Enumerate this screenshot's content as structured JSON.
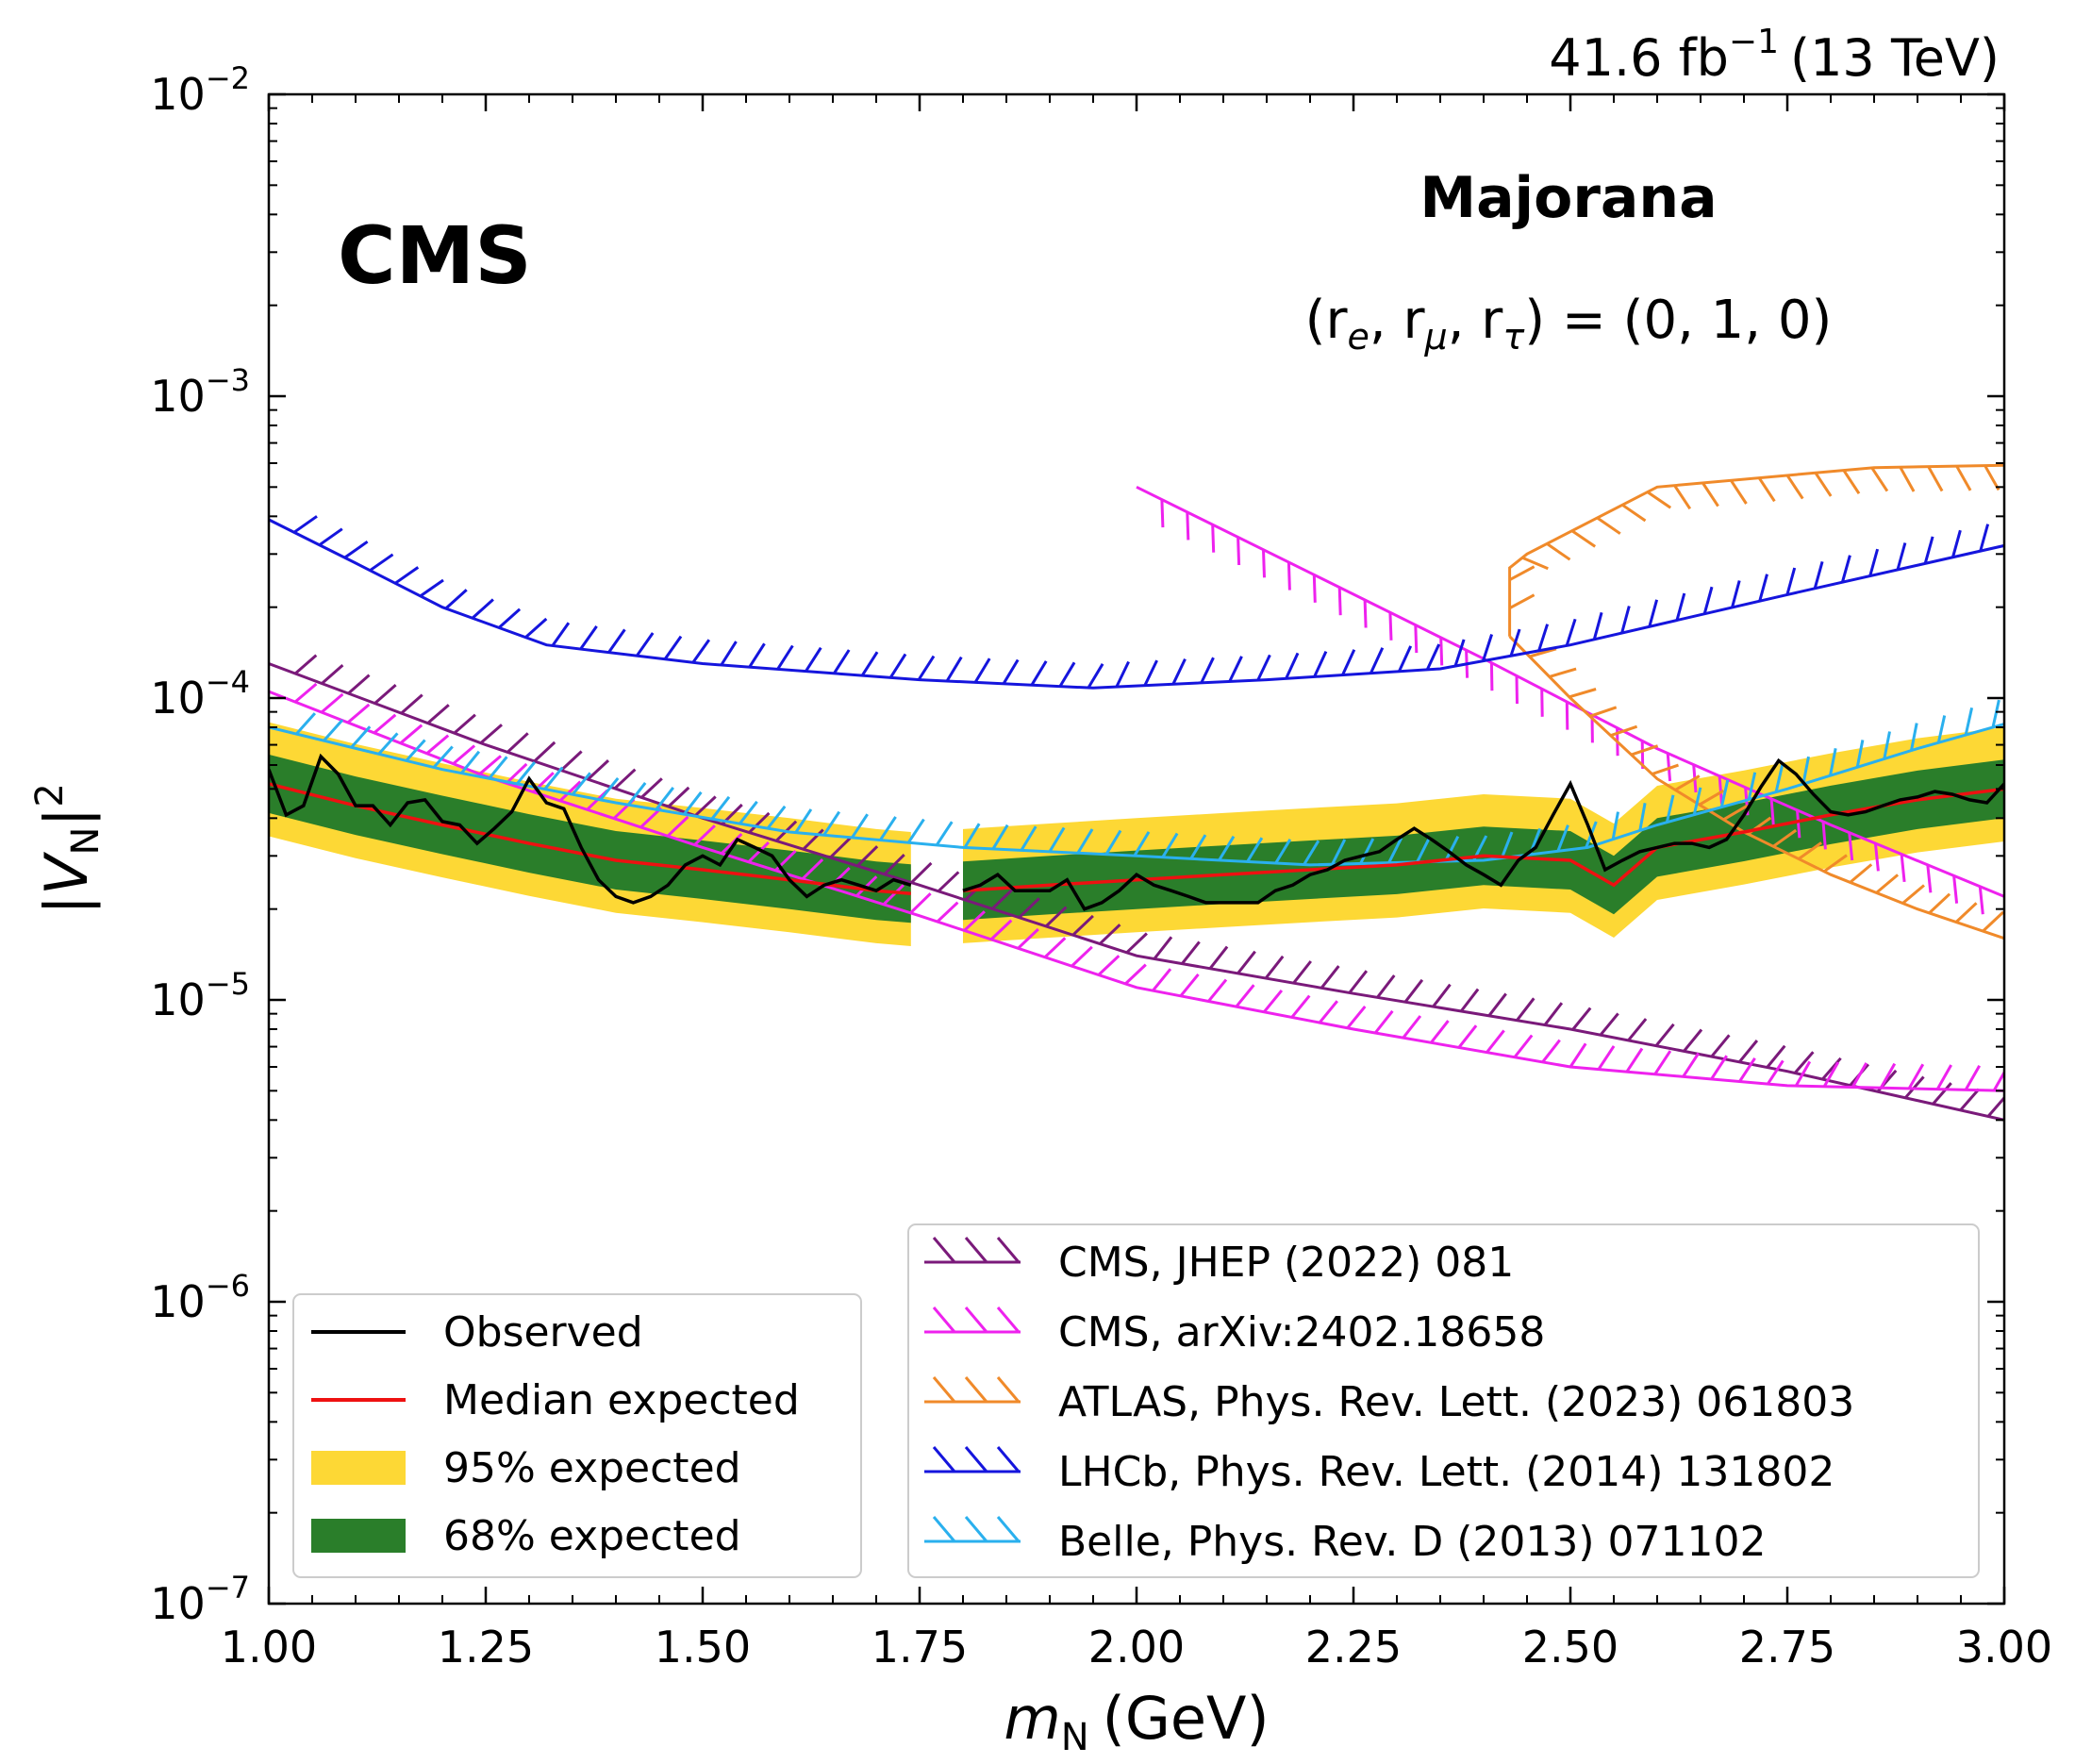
{
  "header": {
    "lumi_text": "41.6 fb",
    "lumi_exp": "−1",
    "energy_text": "(13 TeV)"
  },
  "labels": {
    "experiment": "CMS",
    "model": "Majorana",
    "coupling_text_parts": [
      "(r",
      "e",
      ", r",
      "μ",
      ", r",
      "τ",
      ") = (0, 1, 0)"
    ]
  },
  "chart_data": {
    "type": "line",
    "xlabel_main": "m",
    "xlabel_sub": "N",
    "xlabel_unit": "(GeV)",
    "ylabel_main": "|V",
    "ylabel_sub": "N",
    "ylabel_close": "|",
    "ylabel_sup": "2",
    "xlim": [
      1.0,
      3.0
    ],
    "ylim": [
      1e-07,
      0.01
    ],
    "yscale": "log",
    "x_ticks": [
      1.0,
      1.25,
      1.5,
      1.75,
      2.0,
      2.25,
      2.5,
      2.75,
      3.0
    ],
    "x_tick_labels": [
      "1.00",
      "1.25",
      "1.50",
      "1.75",
      "2.00",
      "2.25",
      "2.50",
      "2.75",
      "3.00"
    ],
    "y_ticks": [
      {
        "value": 1e-07,
        "base": "10",
        "exp": "−7"
      },
      {
        "value": 1e-06,
        "base": "10",
        "exp": "−6"
      },
      {
        "value": 1e-05,
        "base": "10",
        "exp": "−5"
      },
      {
        "value": 0.0001,
        "base": "10",
        "exp": "−4"
      },
      {
        "value": 0.001,
        "base": "10",
        "exp": "−3"
      },
      {
        "value": 0.01,
        "base": "10",
        "exp": "−2"
      }
    ],
    "observed": {
      "name": "Observed",
      "color": "#000000",
      "segments": [
        {
          "x": [
            1.0,
            1.02,
            1.04,
            1.06,
            1.08,
            1.1,
            1.12,
            1.14,
            1.16,
            1.18,
            1.2,
            1.22,
            1.24,
            1.26,
            1.28,
            1.3,
            1.32,
            1.34,
            1.36,
            1.38,
            1.4,
            1.42,
            1.44,
            1.46,
            1.48,
            1.5,
            1.52,
            1.54,
            1.56,
            1.58,
            1.6,
            1.62,
            1.64,
            1.66,
            1.68,
            1.7,
            1.72,
            1.74
          ],
          "y": [
            5.8e-05,
            4.1e-05,
            4.4e-05,
            6.4e-05,
            5.6e-05,
            4.4e-05,
            4.4e-05,
            3.8e-05,
            4.5e-05,
            4.6e-05,
            3.9e-05,
            3.8e-05,
            3.3e-05,
            3.7e-05,
            4.2e-05,
            5.4e-05,
            4.5e-05,
            4.3e-05,
            3.2e-05,
            2.5e-05,
            2.2e-05,
            2.1e-05,
            2.2e-05,
            2.4e-05,
            2.8e-05,
            3e-05,
            2.8e-05,
            3.4e-05,
            3.2e-05,
            3e-05,
            2.5e-05,
            2.2e-05,
            2.4e-05,
            2.5e-05,
            2.4e-05,
            2.3e-05,
            2.5e-05,
            2.4e-05
          ]
        },
        {
          "x": [
            1.8,
            1.82,
            1.84,
            1.86,
            1.88,
            1.9,
            1.92,
            1.94,
            1.96,
            1.98,
            2.0,
            2.02,
            2.04,
            2.06,
            2.08,
            2.1,
            2.12,
            2.14,
            2.16,
            2.18,
            2.2,
            2.22,
            2.24,
            2.26,
            2.28,
            2.3,
            2.32,
            2.34,
            2.36,
            2.38,
            2.4,
            2.42,
            2.44,
            2.46,
            2.48,
            2.5,
            2.52,
            2.54,
            2.56,
            2.58,
            2.6,
            2.62,
            2.64,
            2.66,
            2.68,
            2.7,
            2.72,
            2.74,
            2.76,
            2.78,
            2.8,
            2.82,
            2.84,
            2.86,
            2.88,
            2.9,
            2.92,
            2.94,
            2.96,
            2.98,
            3.0
          ],
          "y": [
            2.3e-05,
            2.4e-05,
            2.6e-05,
            2.3e-05,
            2.3e-05,
            2.3e-05,
            2.5e-05,
            2e-05,
            2.1e-05,
            2.3e-05,
            2.6e-05,
            2.4e-05,
            2.3e-05,
            2.2e-05,
            2.1e-05,
            2.1e-05,
            2.1e-05,
            2.1e-05,
            2.3e-05,
            2.4e-05,
            2.6e-05,
            2.7e-05,
            2.9e-05,
            3e-05,
            3.1e-05,
            3.4e-05,
            3.7e-05,
            3.4e-05,
            3.1e-05,
            2.8e-05,
            2.6e-05,
            2.4e-05,
            2.9e-05,
            3.2e-05,
            4.1e-05,
            5.2e-05,
            3.8e-05,
            2.7e-05,
            2.9e-05,
            3.1e-05,
            3.2e-05,
            3.3e-05,
            3.3e-05,
            3.2e-05,
            3.4e-05,
            4.1e-05,
            5.1e-05,
            6.2e-05,
            5.6e-05,
            4.8e-05,
            4.2e-05,
            4.1e-05,
            4.2e-05,
            4.4e-05,
            4.6e-05,
            4.7e-05,
            4.9e-05,
            4.8e-05,
            4.6e-05,
            4.5e-05,
            5.2e-05
          ]
        }
      ]
    },
    "expected": {
      "median_name": "Median expected",
      "median_color": "#ee1111",
      "band68_name": "68% expected",
      "band68_color": "#2a7e2a",
      "band95_name": "95% expected",
      "band95_color": "#fdd835",
      "segments": [
        {
          "x": [
            1.0,
            1.1,
            1.2,
            1.3,
            1.4,
            1.5,
            1.6,
            1.7,
            1.74
          ],
          "median": [
            5.2e-05,
            4.4e-05,
            3.8e-05,
            3.3e-05,
            2.9e-05,
            2.7e-05,
            2.5e-05,
            2.3e-05,
            2.25e-05
          ]
        },
        {
          "x": [
            1.8,
            1.9,
            2.0,
            2.1,
            2.2,
            2.3,
            2.4,
            2.5,
            2.55,
            2.6,
            2.7,
            2.8,
            2.9,
            3.0
          ],
          "median": [
            2.3e-05,
            2.4e-05,
            2.5e-05,
            2.6e-05,
            2.7e-05,
            2.8e-05,
            3e-05,
            2.9e-05,
            2.4e-05,
            3.2e-05,
            3.6e-05,
            4.1e-05,
            4.6e-05,
            5e-05
          ]
        }
      ],
      "band68_factor_up": 1.25,
      "band68_factor_down": 0.8,
      "band95_factor_up": 1.6,
      "band95_factor_down": 0.67
    },
    "references": [
      {
        "name": "CMS, JHEP (2022) 081",
        "color": "#7a1a7a",
        "x": [
          1.0,
          1.25,
          1.5,
          1.75,
          2.0,
          2.25,
          2.5,
          2.75,
          3.0
        ],
        "y": [
          0.00013,
          7e-05,
          4e-05,
          2.4e-05,
          1.4e-05,
          1.05e-05,
          8e-06,
          5.8e-06,
          4e-06
        ]
      },
      {
        "name": "CMS, arXiv:2402.18658",
        "color": "#ee22ee",
        "x": [
          1.0,
          1.25,
          1.5,
          1.75,
          2.0,
          2.25,
          2.5,
          2.75,
          3.0
        ],
        "y": [
          0.000105,
          5.5e-05,
          3.2e-05,
          1.9e-05,
          1.1e-05,
          8e-06,
          6e-06,
          5.2e-06,
          5e-06
        ],
        "upper_x": [
          2.0,
          2.2,
          2.4,
          2.6,
          2.8,
          3.0
        ],
        "upper_y": [
          0.0005,
          0.00026,
          0.000135,
          6.8e-05,
          3.8e-05,
          2.2e-05
        ]
      },
      {
        "name": "ATLAS, Phys. Rev. Lett. (2023) 061803",
        "color": "#f08a2a",
        "x": [
          2.43,
          2.43,
          2.45,
          2.6,
          2.85,
          3.0,
          3.0,
          2.8,
          2.6,
          2.5,
          2.45,
          2.43
        ],
        "y": [
          0.00016,
          0.00027,
          0.0003,
          0.0005,
          0.00058,
          0.00059,
          0.00059,
          0.00059,
          0.00059,
          0.00059,
          0.00059,
          0.00059
        ],
        "lower_x": [
          2.43,
          2.5,
          2.6,
          2.7,
          2.8,
          2.9,
          3.0
        ],
        "lower_y": [
          0.00016,
          0.0001,
          5.4e-05,
          3.6e-05,
          2.6e-05,
          2e-05,
          1.6e-05
        ]
      },
      {
        "name": "LHCb, Phys. Rev. Lett. (2014) 131802",
        "color": "#1515dd",
        "x": [
          1.0,
          1.1,
          1.2,
          1.32,
          1.5,
          1.75,
          1.95,
          2.15,
          2.35,
          2.5,
          2.75,
          3.0
        ],
        "y": [
          0.00039,
          0.00028,
          0.0002,
          0.00015,
          0.00013,
          0.000115,
          0.000108,
          0.000115,
          0.000125,
          0.00015,
          0.00022,
          0.00032
        ]
      },
      {
        "name": "Belle, Phys. Rev. D (2013) 071102",
        "color": "#2ab0ee",
        "x": [
          1.0,
          1.2,
          1.4,
          1.6,
          1.8,
          2.0,
          2.2,
          2.4,
          2.52,
          2.6,
          2.75,
          2.9,
          3.0
        ],
        "y": [
          8e-05,
          5.8e-05,
          4.5e-05,
          3.6e-05,
          3.2e-05,
          3e-05,
          2.8e-05,
          2.9e-05,
          3.2e-05,
          3.8e-05,
          5e-05,
          6.8e-05,
          8.2e-05
        ]
      }
    ],
    "legend_left": [
      "Observed",
      "Median expected",
      "95% expected",
      "68% expected"
    ],
    "legend_left_position": "bottom-left",
    "legend_right_position": "bottom-right",
    "grid": false
  }
}
